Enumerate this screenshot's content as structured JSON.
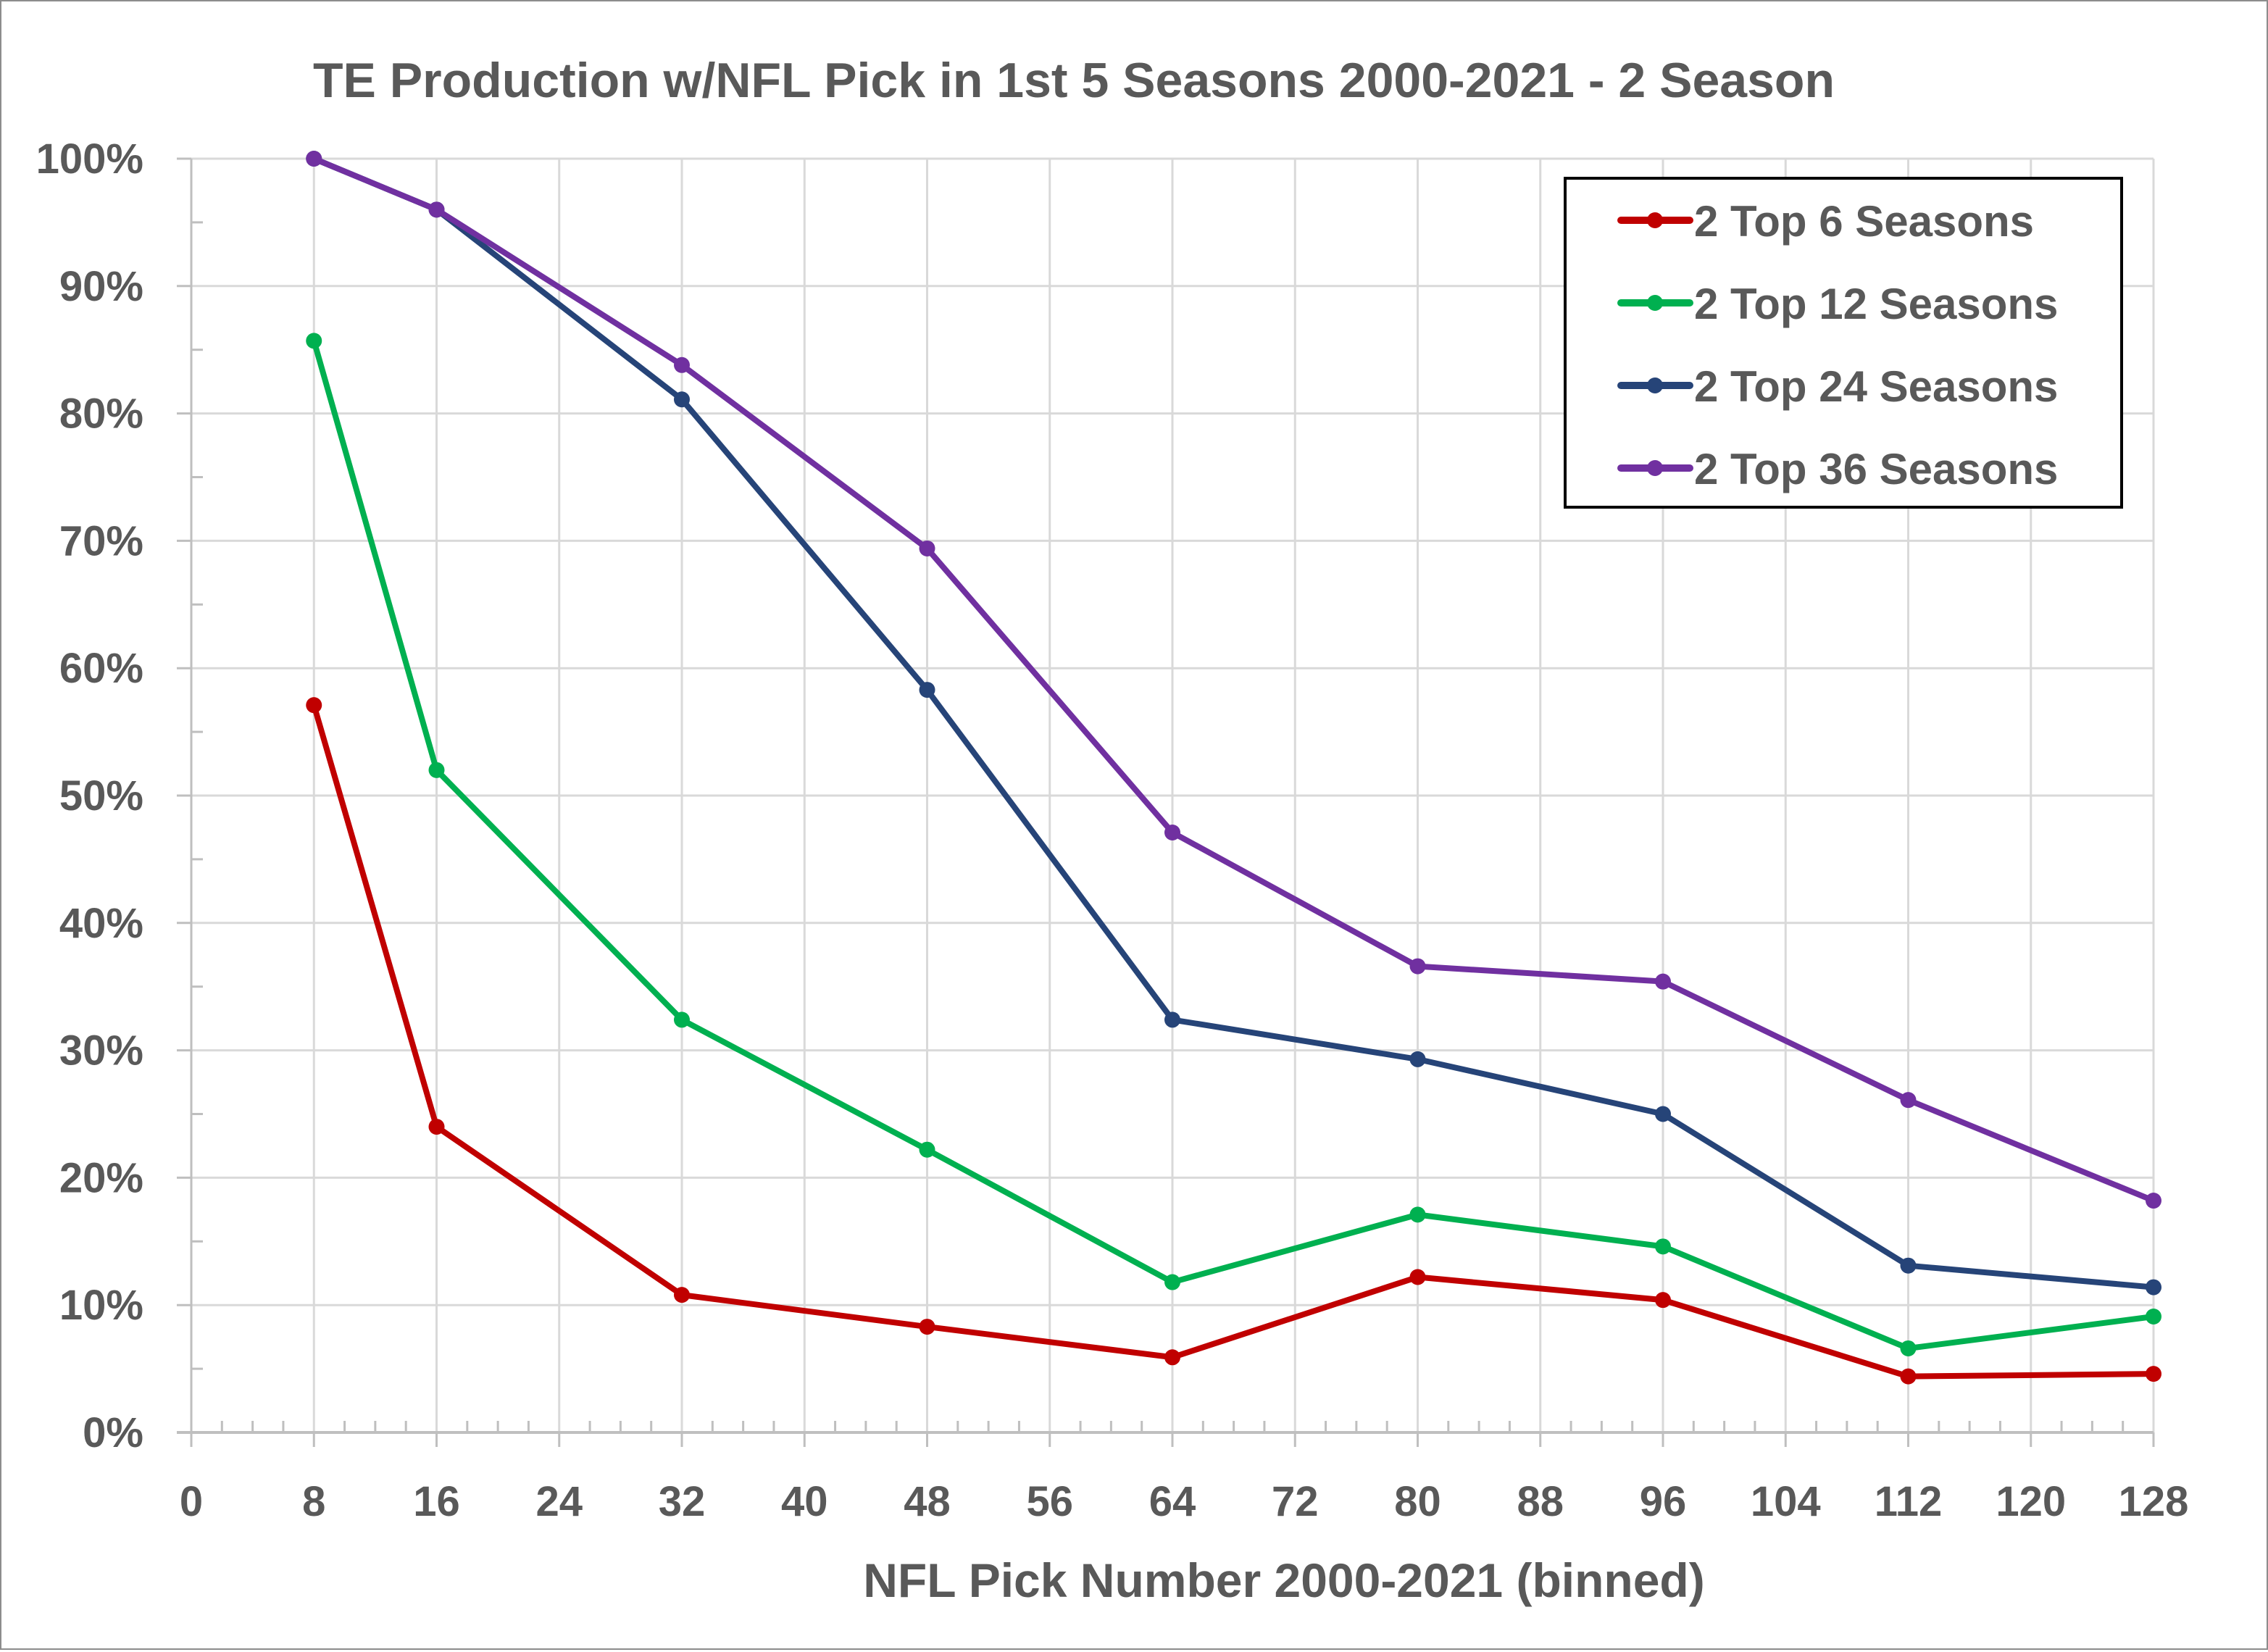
{
  "chart_data": {
    "type": "line",
    "title": "TE Production w/NFL Pick in 1st 5 Seasons 2000-2021 - 2 Season",
    "xlabel": "NFL Pick Number 2000-2021 (binned)",
    "ylabel": "",
    "xlim": [
      0,
      128
    ],
    "ylim": [
      0,
      100
    ],
    "x_ticks": [
      0,
      8,
      16,
      24,
      32,
      40,
      48,
      56,
      64,
      72,
      80,
      88,
      96,
      104,
      112,
      120,
      128
    ],
    "x_tick_labels": [
      "0",
      "8",
      "16",
      "24",
      "32",
      "40",
      "48",
      "56",
      "64",
      "72",
      "80",
      "88",
      "96",
      "104",
      "112",
      "120",
      "128"
    ],
    "y_ticks": [
      0,
      10,
      20,
      30,
      40,
      50,
      60,
      70,
      80,
      90,
      100
    ],
    "y_tick_labels": [
      "0%",
      "10%",
      "20%",
      "30%",
      "40%",
      "50%",
      "60%",
      "70%",
      "80%",
      "90%",
      "100%"
    ],
    "grid": true,
    "legend_position": "top-right",
    "x": [
      8,
      16,
      32,
      48,
      64,
      80,
      96,
      112,
      128
    ],
    "series": [
      {
        "name": "2 Top 6 Seasons",
        "color": "#c00000",
        "values": [
          57.1,
          24.0,
          10.8,
          8.3,
          5.9,
          12.2,
          10.4,
          4.4,
          4.6
        ]
      },
      {
        "name": "2 Top 12 Seasons",
        "color": "#00b050",
        "values": [
          85.7,
          52.0,
          32.4,
          22.2,
          11.8,
          17.1,
          14.6,
          6.6,
          9.1
        ]
      },
      {
        "name": "2 Top 24 Seasons",
        "color": "#264478",
        "values": [
          100.0,
          96.0,
          81.1,
          58.3,
          32.4,
          29.3,
          25.0,
          13.1,
          11.4
        ]
      },
      {
        "name": "2 Top 36 Seasons",
        "color": "#7030a0",
        "values": [
          100.0,
          96.0,
          83.8,
          69.4,
          47.1,
          36.6,
          35.4,
          26.1,
          18.2
        ]
      }
    ]
  }
}
